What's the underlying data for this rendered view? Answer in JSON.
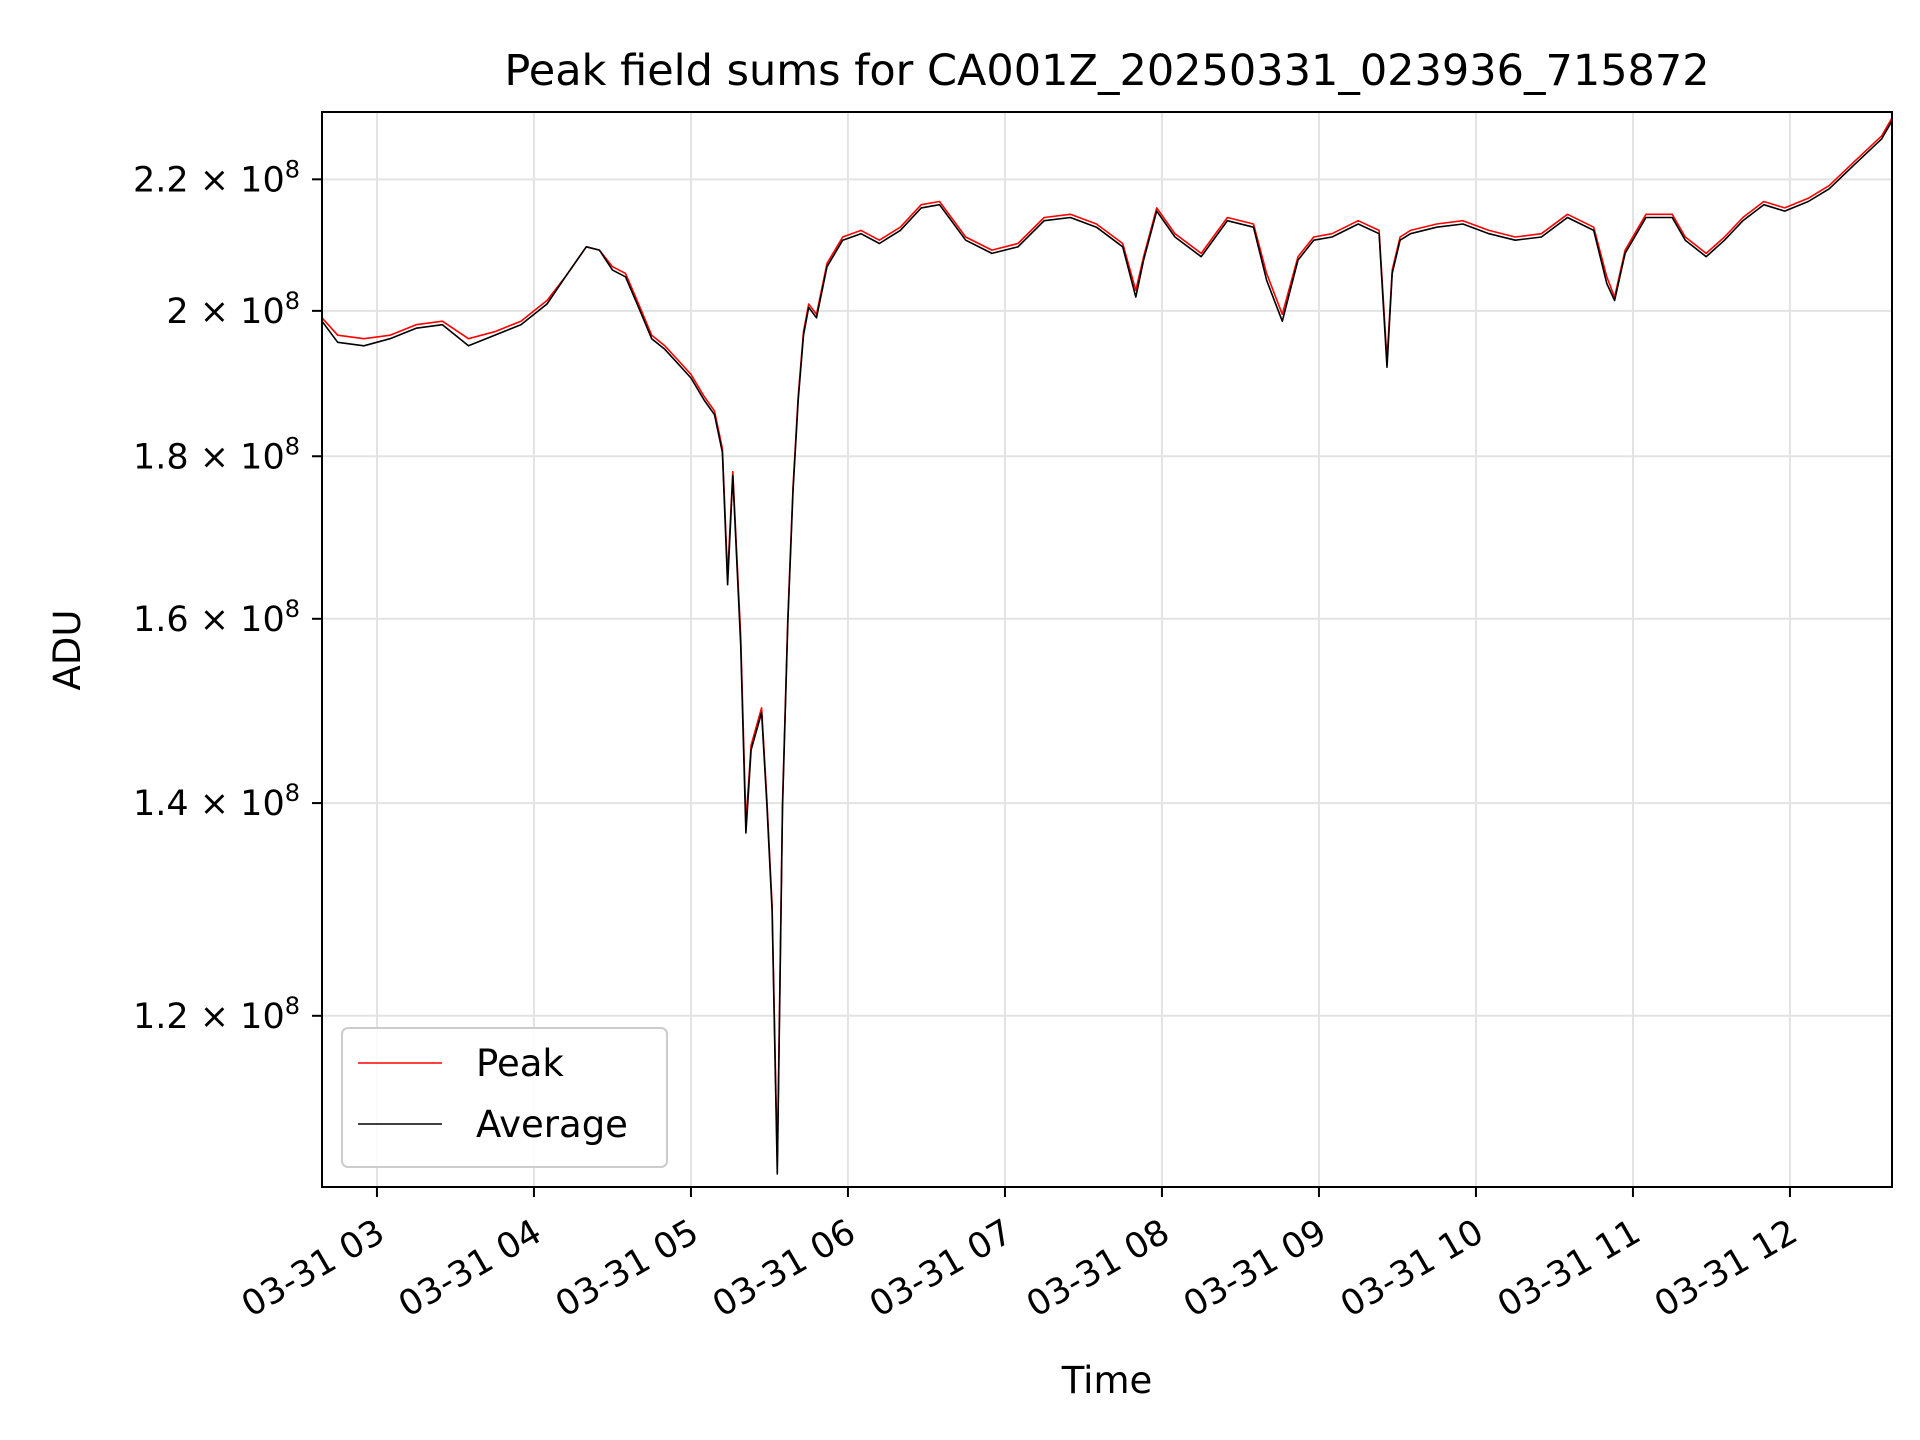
{
  "chart_data": {
    "type": "line",
    "title": "Peak field sums for CA001Z_20250331_023936_715872",
    "xlabel": "Time",
    "ylabel": "ADU",
    "yscale": "log",
    "xlim": [
      "2025-03-31T02:39",
      "2025-03-31T12:39"
    ],
    "ylim": [
      106000000,
      231000000
    ],
    "grid": true,
    "legend_position": "lower-left",
    "x_ticks": [
      {
        "x": "2025-03-31T03:00",
        "label": "03-31 03"
      },
      {
        "x": "2025-03-31T04:00",
        "label": "03-31 04"
      },
      {
        "x": "2025-03-31T05:00",
        "label": "03-31 05"
      },
      {
        "x": "2025-03-31T06:00",
        "label": "03-31 06"
      },
      {
        "x": "2025-03-31T07:00",
        "label": "03-31 07"
      },
      {
        "x": "2025-03-31T08:00",
        "label": "03-31 08"
      },
      {
        "x": "2025-03-31T09:00",
        "label": "03-31 09"
      },
      {
        "x": "2025-03-31T10:00",
        "label": "03-31 10"
      },
      {
        "x": "2025-03-31T11:00",
        "label": "03-31 11"
      },
      {
        "x": "2025-03-31T12:00",
        "label": "03-31 12"
      }
    ],
    "y_ticks": [
      {
        "value": 120000000,
        "mantissa": "1.2",
        "exponent": "8"
      },
      {
        "value": 140000000,
        "mantissa": "1.4",
        "exponent": "8"
      },
      {
        "value": 160000000,
        "mantissa": "1.6",
        "exponent": "8"
      },
      {
        "value": 180000000,
        "mantissa": "1.8",
        "exponent": "8"
      },
      {
        "value": 200000000,
        "mantissa": "2",
        "exponent": "8"
      },
      {
        "value": 220000000,
        "mantissa": "2.2",
        "exponent": "8"
      }
    ],
    "series": [
      {
        "name": "Peak",
        "color": "#ff0000",
        "x": [
          "2025-03-31T02:39",
          "2025-03-31T02:45",
          "2025-03-31T02:55",
          "2025-03-31T03:05",
          "2025-03-31T03:15",
          "2025-03-31T03:25",
          "2025-03-31T03:35",
          "2025-03-31T03:45",
          "2025-03-31T03:55",
          "2025-03-31T04:05",
          "2025-03-31T04:12",
          "2025-03-31T04:20",
          "2025-03-31T04:25",
          "2025-03-31T04:30",
          "2025-03-31T04:35",
          "2025-03-31T04:40",
          "2025-03-31T04:45",
          "2025-03-31T04:50",
          "2025-03-31T04:55",
          "2025-03-31T05:00",
          "2025-03-31T05:05",
          "2025-03-31T05:09",
          "2025-03-31T05:12",
          "2025-03-31T05:14",
          "2025-03-31T05:16",
          "2025-03-31T05:19",
          "2025-03-31T05:21",
          "2025-03-31T05:23",
          "2025-03-31T05:25",
          "2025-03-31T05:27",
          "2025-03-31T05:29",
          "2025-03-31T05:31",
          "2025-03-31T05:33",
          "2025-03-31T05:35",
          "2025-03-31T05:37",
          "2025-03-31T05:39",
          "2025-03-31T05:41",
          "2025-03-31T05:43",
          "2025-03-31T05:45",
          "2025-03-31T05:48",
          "2025-03-31T05:52",
          "2025-03-31T05:58",
          "2025-03-31T06:05",
          "2025-03-31T06:12",
          "2025-03-31T06:20",
          "2025-03-31T06:28",
          "2025-03-31T06:35",
          "2025-03-31T06:45",
          "2025-03-31T06:55",
          "2025-03-31T07:05",
          "2025-03-31T07:15",
          "2025-03-31T07:25",
          "2025-03-31T07:35",
          "2025-03-31T07:45",
          "2025-03-31T07:50",
          "2025-03-31T07:53",
          "2025-03-31T07:58",
          "2025-03-31T08:05",
          "2025-03-31T08:15",
          "2025-03-31T08:25",
          "2025-03-31T08:35",
          "2025-03-31T08:40",
          "2025-03-31T08:46",
          "2025-03-31T08:52",
          "2025-03-31T08:58",
          "2025-03-31T09:05",
          "2025-03-31T09:15",
          "2025-03-31T09:23",
          "2025-03-31T09:26",
          "2025-03-31T09:28",
          "2025-03-31T09:31",
          "2025-03-31T09:35",
          "2025-03-31T09:45",
          "2025-03-31T09:55",
          "2025-03-31T10:05",
          "2025-03-31T10:15",
          "2025-03-31T10:25",
          "2025-03-31T10:35",
          "2025-03-31T10:45",
          "2025-03-31T10:50",
          "2025-03-31T10:53",
          "2025-03-31T10:57",
          "2025-03-31T11:05",
          "2025-03-31T11:15",
          "2025-03-31T11:20",
          "2025-03-31T11:28",
          "2025-03-31T11:35",
          "2025-03-31T11:42",
          "2025-03-31T11:50",
          "2025-03-31T11:58",
          "2025-03-31T12:07",
          "2025-03-31T12:15",
          "2025-03-31T12:25",
          "2025-03-31T12:35",
          "2025-03-31T12:39"
        ],
        "values": [
          199000000,
          196500000,
          196000000,
          196500000,
          198000000,
          198500000,
          196000000,
          197000000,
          198500000,
          201500000,
          205000000,
          209500000,
          209000000,
          206500000,
          205500000,
          201000000,
          196500000,
          195000000,
          193000000,
          191000000,
          188000000,
          186000000,
          181000000,
          165000000,
          178000000,
          158000000,
          138000000,
          146000000,
          148000000,
          150000000,
          140500000,
          130000000,
          108000000,
          140000000,
          160000000,
          176000000,
          188000000,
          197000000,
          201000000,
          199500000,
          207000000,
          211000000,
          212000000,
          210500000,
          212500000,
          216000000,
          216500000,
          211000000,
          209000000,
          210000000,
          214000000,
          214500000,
          213000000,
          210000000,
          203000000,
          208000000,
          215500000,
          211500000,
          208500000,
          214000000,
          213000000,
          205500000,
          199500000,
          208000000,
          211000000,
          211500000,
          213500000,
          212000000,
          193000000,
          206000000,
          211000000,
          212000000,
          213000000,
          213500000,
          212000000,
          211000000,
          211500000,
          214500000,
          212500000,
          205000000,
          202000000,
          209000000,
          214500000,
          214500000,
          211000000,
          208500000,
          211000000,
          214000000,
          216500000,
          215500000,
          217000000,
          219000000,
          223000000,
          227000000,
          230000000
        ]
      },
      {
        "name": "Average",
        "color": "#000000",
        "x": [
          "2025-03-31T02:39",
          "2025-03-31T02:45",
          "2025-03-31T02:55",
          "2025-03-31T03:05",
          "2025-03-31T03:15",
          "2025-03-31T03:25",
          "2025-03-31T03:35",
          "2025-03-31T03:45",
          "2025-03-31T03:55",
          "2025-03-31T04:05",
          "2025-03-31T04:12",
          "2025-03-31T04:20",
          "2025-03-31T04:25",
          "2025-03-31T04:30",
          "2025-03-31T04:35",
          "2025-03-31T04:40",
          "2025-03-31T04:45",
          "2025-03-31T04:50",
          "2025-03-31T04:55",
          "2025-03-31T05:00",
          "2025-03-31T05:05",
          "2025-03-31T05:09",
          "2025-03-31T05:12",
          "2025-03-31T05:14",
          "2025-03-31T05:16",
          "2025-03-31T05:19",
          "2025-03-31T05:21",
          "2025-03-31T05:23",
          "2025-03-31T05:25",
          "2025-03-31T05:27",
          "2025-03-31T05:29",
          "2025-03-31T05:31",
          "2025-03-31T05:33",
          "2025-03-31T05:35",
          "2025-03-31T05:37",
          "2025-03-31T05:39",
          "2025-03-31T05:41",
          "2025-03-31T05:43",
          "2025-03-31T05:45",
          "2025-03-31T05:48",
          "2025-03-31T05:52",
          "2025-03-31T05:58",
          "2025-03-31T06:05",
          "2025-03-31T06:12",
          "2025-03-31T06:20",
          "2025-03-31T06:28",
          "2025-03-31T06:35",
          "2025-03-31T06:45",
          "2025-03-31T06:55",
          "2025-03-31T07:05",
          "2025-03-31T07:15",
          "2025-03-31T07:25",
          "2025-03-31T07:35",
          "2025-03-31T07:45",
          "2025-03-31T07:50",
          "2025-03-31T07:53",
          "2025-03-31T07:58",
          "2025-03-31T08:05",
          "2025-03-31T08:15",
          "2025-03-31T08:25",
          "2025-03-31T08:35",
          "2025-03-31T08:40",
          "2025-03-31T08:46",
          "2025-03-31T08:52",
          "2025-03-31T08:58",
          "2025-03-31T09:05",
          "2025-03-31T09:15",
          "2025-03-31T09:23",
          "2025-03-31T09:26",
          "2025-03-31T09:28",
          "2025-03-31T09:31",
          "2025-03-31T09:35",
          "2025-03-31T09:45",
          "2025-03-31T09:55",
          "2025-03-31T10:05",
          "2025-03-31T10:15",
          "2025-03-31T10:25",
          "2025-03-31T10:35",
          "2025-03-31T10:45",
          "2025-03-31T10:50",
          "2025-03-31T10:53",
          "2025-03-31T10:57",
          "2025-03-31T11:05",
          "2025-03-31T11:15",
          "2025-03-31T11:20",
          "2025-03-31T11:28",
          "2025-03-31T11:35",
          "2025-03-31T11:42",
          "2025-03-31T11:50",
          "2025-03-31T11:58",
          "2025-03-31T12:07",
          "2025-03-31T12:15",
          "2025-03-31T12:25",
          "2025-03-31T12:35",
          "2025-03-31T12:39"
        ],
        "values": [
          198500000,
          195500000,
          195000000,
          196000000,
          197500000,
          198000000,
          195000000,
          196500000,
          198000000,
          201000000,
          205000000,
          209500000,
          209000000,
          206000000,
          205000000,
          200500000,
          196000000,
          194500000,
          192500000,
          190500000,
          187500000,
          185500000,
          180500000,
          164000000,
          177500000,
          157000000,
          137000000,
          145500000,
          147500000,
          149500000,
          140000000,
          129500000,
          107000000,
          139500000,
          159500000,
          175500000,
          187500000,
          196500000,
          200500000,
          199000000,
          206500000,
          210500000,
          211500000,
          210000000,
          212000000,
          215500000,
          216000000,
          210500000,
          208500000,
          209500000,
          213500000,
          214000000,
          212500000,
          209500000,
          202000000,
          207500000,
          215000000,
          211000000,
          208000000,
          213500000,
          212500000,
          204500000,
          198500000,
          207500000,
          210500000,
          211000000,
          213000000,
          211500000,
          192000000,
          205500000,
          210500000,
          211500000,
          212500000,
          213000000,
          211500000,
          210500000,
          211000000,
          214000000,
          212000000,
          204000000,
          201500000,
          208500000,
          214000000,
          214000000,
          210500000,
          208000000,
          210500000,
          213500000,
          216000000,
          215000000,
          216500000,
          218500000,
          222500000,
          226500000,
          229500000
        ]
      }
    ]
  }
}
